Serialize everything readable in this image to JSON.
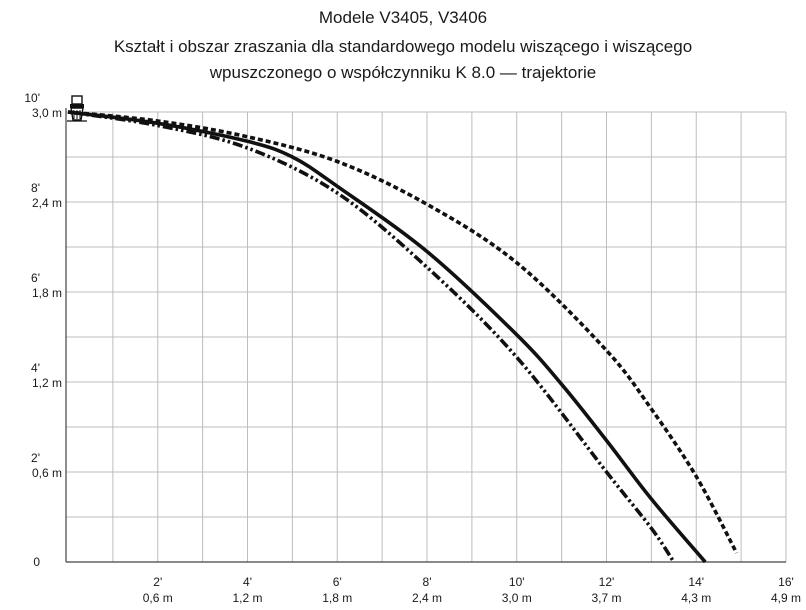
{
  "chart_data": {
    "type": "line",
    "title_lines": [
      "Modele V3405, V3406",
      "Kształt i obszar zraszania dla standardowego modelu wiszącego i wiszącego",
      "wpuszczonego o współczynniku K 8.0 — trajektorie"
    ],
    "xlabel": "",
    "ylabel": "",
    "xlim": [
      0,
      16
    ],
    "ylim": [
      0,
      10
    ],
    "grid": true,
    "legend": "none",
    "x_ticks": [
      {
        "value": 2,
        "ft": "2'",
        "m": "0,6 m"
      },
      {
        "value": 4,
        "ft": "4'",
        "m": "1,2 m"
      },
      {
        "value": 6,
        "ft": "6'",
        "m": "1,8 m"
      },
      {
        "value": 8,
        "ft": "8'",
        "m": "2,4 m"
      },
      {
        "value": 10,
        "ft": "10'",
        "m": "3,0 m"
      },
      {
        "value": 12,
        "ft": "12'",
        "m": "3,7 m"
      },
      {
        "value": 14,
        "ft": "14'",
        "m": "4,3 m"
      },
      {
        "value": 16,
        "ft": "16'",
        "m": "4,9 m"
      }
    ],
    "y_ticks": [
      {
        "value": 0,
        "ft": "0",
        "m": ""
      },
      {
        "value": 2,
        "ft": "2'",
        "m": "0,6 m"
      },
      {
        "value": 4,
        "ft": "4'",
        "m": "1,2 m"
      },
      {
        "value": 6,
        "ft": "6'",
        "m": "1,8 m"
      },
      {
        "value": 8,
        "ft": "8'",
        "m": "2,4 m"
      },
      {
        "value": 10,
        "ft": "10'",
        "m": "3,0 m"
      }
    ],
    "series": [
      {
        "style": "dotted",
        "color": "#111111",
        "points": [
          [
            0,
            10
          ],
          [
            2,
            9.8
          ],
          [
            4,
            9.45
          ],
          [
            6,
            8.9
          ],
          [
            8,
            7.95
          ],
          [
            10,
            6.65
          ],
          [
            12,
            4.7
          ],
          [
            13,
            3.4
          ],
          [
            14,
            1.9
          ],
          [
            14.9,
            0.2
          ]
        ]
      },
      {
        "style": "solid",
        "color": "#111111",
        "points": [
          [
            0,
            10
          ],
          [
            2,
            9.75
          ],
          [
            4,
            9.35
          ],
          [
            5,
            9.0
          ],
          [
            6,
            8.35
          ],
          [
            8,
            6.9
          ],
          [
            10,
            5.05
          ],
          [
            11,
            3.95
          ],
          [
            12,
            2.7
          ],
          [
            13,
            1.4
          ],
          [
            14.2,
            0
          ]
        ]
      },
      {
        "style": "dash-dot-dot",
        "color": "#111111",
        "points": [
          [
            0,
            10
          ],
          [
            2,
            9.7
          ],
          [
            4,
            9.2
          ],
          [
            6,
            8.2
          ],
          [
            8,
            6.55
          ],
          [
            10,
            4.55
          ],
          [
            12,
            2.0
          ],
          [
            13,
            0.75
          ],
          [
            13.5,
            0
          ]
        ]
      }
    ]
  }
}
